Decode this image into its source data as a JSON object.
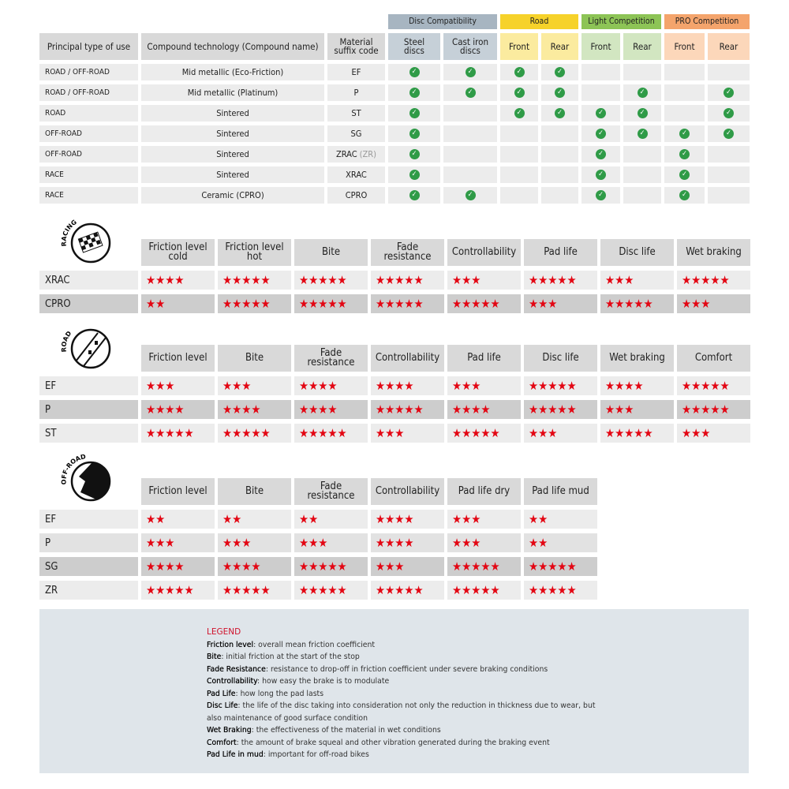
{
  "compat": {
    "groups": [
      {
        "label": "Disc Compatibility",
        "color": "#a7b5c1"
      },
      {
        "label": "Road",
        "color": "#f6d22a"
      },
      {
        "label": "Light Competition",
        "color": "#8dc456"
      },
      {
        "label": "PRO Competition",
        "color": "#f4a46c"
      }
    ],
    "headers": [
      "Principal type of use",
      "Compound technology (Compound name)",
      "Material suffix code",
      "Steel discs",
      "Cast iron discs",
      "Front",
      "Rear",
      "Front",
      "Rear",
      "Front",
      "Rear"
    ],
    "subheader_colors": [
      "#c6d0d8",
      "#c6d0d8",
      "#fbeb9f",
      "#fbeb9f",
      "#d2e6c1",
      "#d2e6c1",
      "#fcd7ba",
      "#fcd7ba"
    ],
    "rows": [
      {
        "type": "ROAD / OFF-ROAD",
        "compound": "Mid metallic (Eco-Friction)",
        "code": "EF",
        "checks": [
          true,
          true,
          true,
          true,
          false,
          false,
          false,
          false
        ]
      },
      {
        "type": "ROAD / OFF-ROAD",
        "compound": "Mid metallic (Platinum)",
        "code": "P",
        "checks": [
          true,
          true,
          true,
          true,
          false,
          true,
          false,
          true
        ]
      },
      {
        "type": "ROAD",
        "compound": "Sintered",
        "code": "ST",
        "checks": [
          true,
          false,
          true,
          true,
          true,
          true,
          false,
          true
        ]
      },
      {
        "type": "OFF-ROAD",
        "compound": "Sintered",
        "code": "SG",
        "checks": [
          true,
          false,
          false,
          false,
          true,
          true,
          true,
          true
        ]
      },
      {
        "type": "OFF-ROAD",
        "compound": "Sintered",
        "code": "ZRAC",
        "code_alt": "(ZR)",
        "checks": [
          true,
          false,
          false,
          false,
          true,
          false,
          true,
          false
        ]
      },
      {
        "type": "RACE",
        "compound": "Sintered",
        "code": "XRAC",
        "checks": [
          true,
          false,
          false,
          false,
          true,
          false,
          true,
          false
        ]
      },
      {
        "type": "RACE",
        "compound": "Ceramic (CPRO)",
        "code": "CPRO",
        "checks": [
          true,
          true,
          false,
          false,
          true,
          false,
          true,
          false
        ]
      }
    ],
    "check_icon": "check-circle-icon",
    "check_color": "#2f9b47"
  },
  "ratings": [
    {
      "icon_label": "RACING",
      "icon": "checkered-flag-icon",
      "headers": [
        "Friction level cold",
        "Friction level hot",
        "Bite",
        "Fade resistance",
        "Controllability",
        "Pad life",
        "Disc life",
        "Wet braking"
      ],
      "rows": [
        {
          "code": "XRAC",
          "shade": "light",
          "stars": [
            4,
            5,
            5,
            5,
            3,
            5,
            3,
            5
          ]
        },
        {
          "code": "CPRO",
          "shade": "dark",
          "stars": [
            2,
            5,
            5,
            5,
            5,
            3,
            5,
            3
          ]
        }
      ]
    },
    {
      "icon_label": "ROAD",
      "icon": "road-icon",
      "headers": [
        "Friction level",
        "Bite",
        "Fade resistance",
        "Controllability",
        "Pad life",
        "Disc life",
        "Wet braking",
        "Comfort"
      ],
      "rows": [
        {
          "code": "EF",
          "shade": "light",
          "stars": [
            3,
            3,
            4,
            4,
            3,
            5,
            4,
            5
          ]
        },
        {
          "code": "P",
          "shade": "dark",
          "stars": [
            4,
            4,
            4,
            5,
            4,
            5,
            3,
            5
          ]
        },
        {
          "code": "ST",
          "shade": "light",
          "stars": [
            5,
            5,
            5,
            3,
            5,
            3,
            5,
            3
          ]
        }
      ]
    },
    {
      "icon_label": "OFF-ROAD",
      "icon": "mud-splash-icon",
      "headers": [
        "Friction level",
        "Bite",
        "Fade resistance",
        "Controllability",
        "Pad life dry",
        "Pad life mud"
      ],
      "rows": [
        {
          "code": "EF",
          "shade": "light",
          "stars": [
            2,
            2,
            2,
            4,
            3,
            2
          ]
        },
        {
          "code": "P",
          "shade": "mid",
          "stars": [
            3,
            3,
            3,
            4,
            3,
            2
          ]
        },
        {
          "code": "SG",
          "shade": "dark",
          "stars": [
            4,
            4,
            5,
            3,
            5,
            5
          ]
        },
        {
          "code": "ZR",
          "shade": "light",
          "stars": [
            5,
            5,
            5,
            5,
            5,
            5
          ]
        }
      ]
    }
  ],
  "star_color": "#e30613",
  "legend": {
    "title": "LEGEND",
    "items": [
      {
        "term": "Friction level",
        "desc": "overall mean friction coefficient"
      },
      {
        "term": "Bite",
        "desc": "initial friction at the start of the stop"
      },
      {
        "term": "Fade Resistance",
        "desc": "resistance to drop-off in friction coefficient under severe braking conditions"
      },
      {
        "term": "Controllability",
        "desc": "how easy the brake is to modulate"
      },
      {
        "term": "Pad Life",
        "desc": "how long the pad lasts"
      },
      {
        "term": "Disc Life",
        "desc": "the life of the disc taking into consideration not only the reduction in thickness due to wear, but also maintenance of good surface condition"
      },
      {
        "term": "Wet Braking",
        "desc": "the effectiveness of the material in wet conditions"
      },
      {
        "term": "Comfort",
        "desc": "the amount of brake squeal and other vibration generated during the braking event"
      },
      {
        "term": "Pad Life in mud",
        "desc": "important for off-road bikes"
      }
    ]
  }
}
